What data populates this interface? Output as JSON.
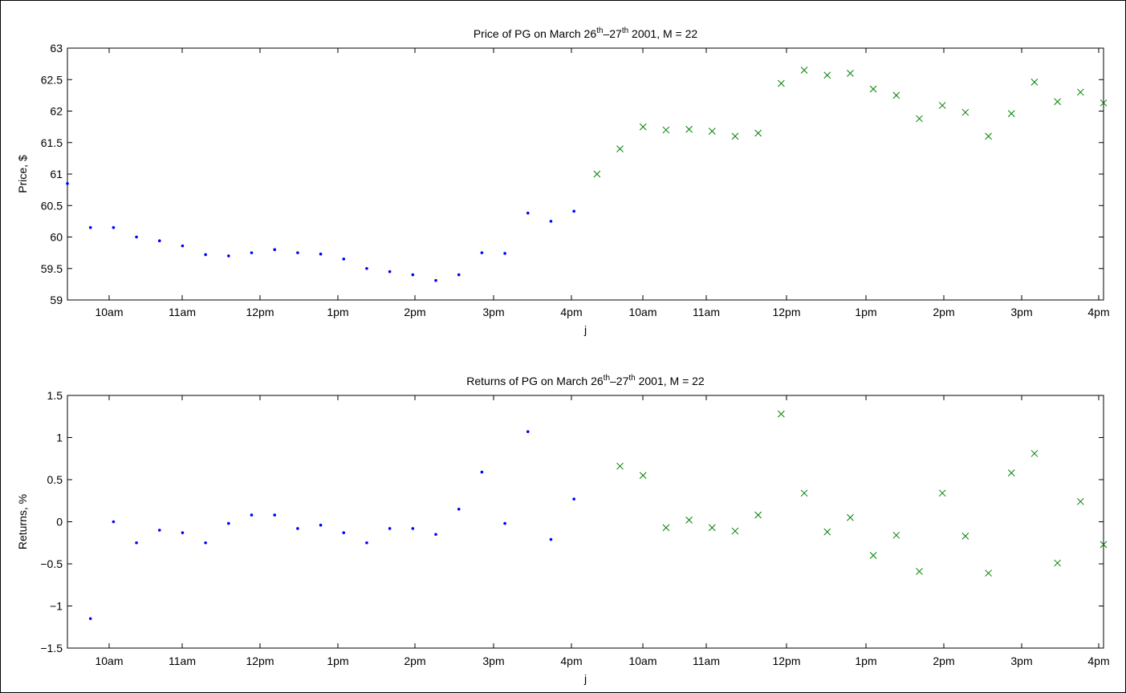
{
  "chart_data": [
    {
      "type": "scatter",
      "title": {
        "pre": "Price of PG on March 26",
        "sup1": "th",
        "mid": "–27",
        "sup2": "th",
        "post": " 2001, M = 22"
      },
      "xlabel": "j",
      "ylabel": "Price, $",
      "ylim": [
        59,
        63
      ],
      "yticks": [
        "59",
        "59.5",
        "60",
        "60.5",
        "61",
        "61.5",
        "62",
        "62.5",
        "63"
      ],
      "xticks": [
        "10am",
        "11am",
        "12pm",
        "1pm",
        "2pm",
        "3pm",
        "4pm",
        "10am",
        "11am",
        "12pm",
        "1pm",
        "2pm",
        "3pm",
        "4pm"
      ],
      "xlim": [
        0,
        45
      ],
      "grid": false,
      "series": [
        {
          "marker": "dot",
          "color": "#0000ff",
          "x": [
            0,
            1,
            2,
            3,
            4,
            5,
            6,
            7,
            8,
            9,
            10,
            11,
            12,
            13,
            14,
            15,
            16,
            17,
            18,
            19,
            20,
            21,
            22
          ],
          "y": [
            60.85,
            60.15,
            60.15,
            60.0,
            59.94,
            59.86,
            59.72,
            59.7,
            59.75,
            59.8,
            59.75,
            59.73,
            59.65,
            59.5,
            59.45,
            59.4,
            59.31,
            59.4,
            59.75,
            59.74,
            60.38,
            60.25,
            60.41
          ]
        },
        {
          "marker": "cross",
          "color": "#008000",
          "x": [
            23,
            24,
            25,
            26,
            27,
            28,
            29,
            30,
            31,
            32,
            33,
            34,
            35,
            36,
            37,
            38,
            39,
            40,
            41,
            42,
            43,
            44,
            45
          ],
          "y": [
            61.0,
            61.4,
            61.75,
            61.7,
            61.71,
            61.68,
            61.6,
            61.65,
            62.44,
            62.65,
            62.57,
            62.6,
            62.35,
            62.25,
            61.88,
            62.09,
            61.98,
            61.6,
            61.96,
            62.46,
            62.15,
            62.3,
            62.13
          ]
        }
      ]
    },
    {
      "type": "scatter",
      "title": {
        "pre": "Returns of PG on March 26",
        "sup1": "th",
        "mid": "–27",
        "sup2": "th",
        "post": " 2001, M = 22"
      },
      "xlabel": "j",
      "ylabel": "Returns, %",
      "ylim": [
        -1.5,
        1.5
      ],
      "yticks": [
        "−1.5",
        "−1",
        "−0.5",
        "0",
        "0.5",
        "1",
        "1.5"
      ],
      "xticks": [
        "10am",
        "11am",
        "12pm",
        "1pm",
        "2pm",
        "3pm",
        "4pm",
        "10am",
        "11am",
        "12pm",
        "1pm",
        "2pm",
        "3pm",
        "4pm"
      ],
      "xlim": [
        0,
        45
      ],
      "grid": false,
      "series": [
        {
          "marker": "dot",
          "color": "#0000ff",
          "x": [
            1,
            2,
            3,
            4,
            5,
            6,
            7,
            8,
            9,
            10,
            11,
            12,
            13,
            14,
            15,
            16,
            17,
            18,
            19,
            20,
            21,
            22
          ],
          "y": [
            -1.15,
            0.0,
            -0.25,
            -0.1,
            -0.13,
            -0.25,
            -0.02,
            0.08,
            0.08,
            -0.08,
            -0.04,
            -0.13,
            -0.25,
            -0.08,
            -0.08,
            -0.15,
            0.15,
            0.59,
            -0.02,
            1.07,
            -0.21,
            0.27
          ]
        },
        {
          "marker": "cross",
          "color": "#008000",
          "x": [
            24,
            25,
            26,
            27,
            28,
            29,
            30,
            31,
            32,
            33,
            34,
            35,
            36,
            37,
            38,
            39,
            40,
            41,
            42,
            43,
            44,
            45
          ],
          "y": [
            0.66,
            0.55,
            -0.07,
            0.02,
            -0.07,
            -0.11,
            0.08,
            1.28,
            0.34,
            -0.12,
            0.05,
            -0.4,
            -0.16,
            -0.59,
            0.34,
            -0.17,
            -0.61,
            0.58,
            0.81,
            -0.49,
            0.24,
            -0.27
          ]
        }
      ]
    }
  ]
}
